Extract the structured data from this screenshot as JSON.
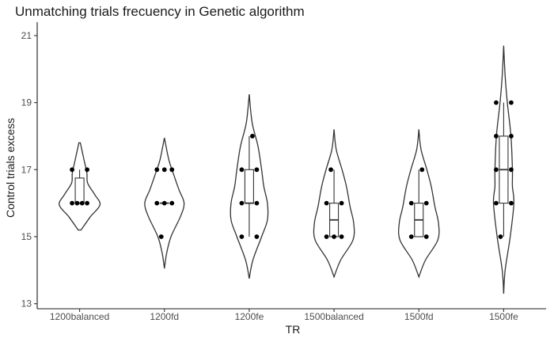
{
  "chart_data": {
    "type": "violin",
    "title": "Unmatching trials frecuency in Genetic algorithm",
    "xlabel": "TR",
    "ylabel": "Control trials excess",
    "ylim": [
      13,
      21
    ],
    "yticks": [
      13,
      15,
      17,
      19,
      21
    ],
    "grid": false,
    "legend": "none",
    "categories": [
      "1200balanced",
      "1200fd",
      "1200fe",
      "1500balanced",
      "1500fd",
      "1500fe"
    ],
    "groups": [
      {
        "category": "1200balanced",
        "range": [
          15.2,
          17.8
        ],
        "box": {
          "q1": 16.0,
          "median": 16.0,
          "q3": 16.75,
          "min": 16.0,
          "max": 17.0
        },
        "points": [
          16,
          16,
          16,
          16,
          17,
          17
        ],
        "density": [
          [
            15.2,
            0.04
          ],
          [
            15.6,
            0.3
          ],
          [
            15.95,
            0.56
          ],
          [
            16.25,
            0.42
          ],
          [
            16.6,
            0.22
          ],
          [
            16.9,
            0.2
          ],
          [
            17.3,
            0.12
          ],
          [
            17.8,
            0.02
          ]
        ]
      },
      {
        "category": "1200fd",
        "range": [
          14.05,
          17.95
        ],
        "box": {
          "q1": 16.0,
          "median": 16.0,
          "q3": 16.0,
          "min": 16.0,
          "max": 16.0
        },
        "points": [
          15,
          16,
          16,
          16,
          17,
          17,
          17
        ],
        "density": [
          [
            14.05,
            0.0
          ],
          [
            14.5,
            0.06
          ],
          [
            15.0,
            0.18
          ],
          [
            15.6,
            0.44
          ],
          [
            16.0,
            0.54
          ],
          [
            16.4,
            0.4
          ],
          [
            16.9,
            0.24
          ],
          [
            17.3,
            0.12
          ],
          [
            17.95,
            0.0
          ]
        ]
      },
      {
        "category": "1200fe",
        "range": [
          13.75,
          19.25
        ],
        "box": {
          "q1": 16.0,
          "median": 16.0,
          "q3": 17.0,
          "min": 15.0,
          "max": 18.0
        },
        "points": [
          15,
          15,
          16,
          16,
          17,
          17,
          18
        ],
        "density": [
          [
            13.75,
            0.0
          ],
          [
            14.3,
            0.1
          ],
          [
            15.0,
            0.34
          ],
          [
            15.5,
            0.5
          ],
          [
            16.0,
            0.5
          ],
          [
            16.5,
            0.4
          ],
          [
            17.0,
            0.34
          ],
          [
            17.7,
            0.24
          ],
          [
            18.4,
            0.08
          ],
          [
            19.25,
            0.0
          ]
        ]
      },
      {
        "category": "1500balanced",
        "range": [
          13.8,
          18.2
        ],
        "box": {
          "q1": 15.0,
          "median": 15.5,
          "q3": 16.0,
          "min": 15.0,
          "max": 17.0
        },
        "points": [
          15,
          15,
          15,
          16,
          16,
          17
        ],
        "density": [
          [
            13.8,
            0.0
          ],
          [
            14.3,
            0.18
          ],
          [
            14.9,
            0.52
          ],
          [
            15.4,
            0.54
          ],
          [
            15.9,
            0.44
          ],
          [
            16.5,
            0.34
          ],
          [
            17.0,
            0.22
          ],
          [
            17.6,
            0.06
          ],
          [
            18.2,
            0.0
          ]
        ]
      },
      {
        "category": "1500fd",
        "range": [
          13.8,
          18.2
        ],
        "box": {
          "q1": 15.0,
          "median": 15.5,
          "q3": 16.0,
          "min": 15.0,
          "max": 17.0
        },
        "points": [
          15,
          15,
          16,
          16,
          17
        ],
        "density": [
          [
            13.8,
            0.0
          ],
          [
            14.3,
            0.18
          ],
          [
            14.9,
            0.52
          ],
          [
            15.4,
            0.54
          ],
          [
            15.9,
            0.44
          ],
          [
            16.5,
            0.34
          ],
          [
            17.0,
            0.22
          ],
          [
            17.6,
            0.06
          ],
          [
            18.2,
            0.0
          ]
        ]
      },
      {
        "category": "1500fe",
        "range": [
          13.3,
          20.7
        ],
        "box": {
          "q1": 16.0,
          "median": 17.0,
          "q3": 18.0,
          "min": 15.0,
          "max": 19.0
        },
        "points": [
          15,
          16,
          16,
          17,
          17,
          18,
          18,
          19,
          19
        ],
        "density": [
          [
            13.3,
            0.0
          ],
          [
            14.0,
            0.04
          ],
          [
            15.0,
            0.18
          ],
          [
            16.0,
            0.28
          ],
          [
            16.5,
            0.24
          ],
          [
            17.0,
            0.24
          ],
          [
            18.0,
            0.2
          ],
          [
            19.0,
            0.1
          ],
          [
            19.8,
            0.04
          ],
          [
            20.7,
            0.0
          ]
        ]
      }
    ]
  }
}
